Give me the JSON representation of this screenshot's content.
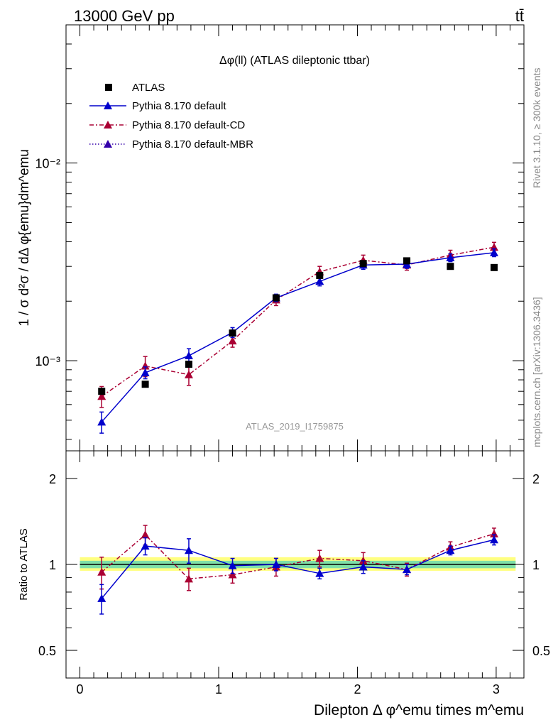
{
  "header": {
    "left": "13000 GeV pp",
    "right": "tt̄"
  },
  "side_text": {
    "right_top": "Rivet 3.1.10, ≥ 300k events",
    "right_bottom": "mcplots.cern.ch [arXiv:1306.3436]"
  },
  "watermark": "ATLAS_2019_I1759875",
  "colors": {
    "atlas": "#000000",
    "default": "#0000cc",
    "cd": "#aa0033",
    "mbr": "#3300aa",
    "band_inner": "#7fe0a8",
    "band_outer": "#ffff80"
  },
  "chart_data": [
    {
      "type": "scatter",
      "title": "Δφ(ll) (ATLAS dileptonic ttbar)",
      "ylabel": "1 / σ  d²σ / dΔ φ{emu}dm^emu",
      "xlim": [
        -0.1,
        3.2
      ],
      "ylim": [
        0.00035,
        0.05
      ],
      "yscale": "log",
      "ytick_labels": [
        "10⁻³",
        "10⁻²"
      ],
      "legend_position": "top-left",
      "x": [
        0.157,
        0.471,
        0.785,
        1.1,
        1.414,
        1.728,
        2.042,
        2.356,
        2.67,
        2.985
      ],
      "series": [
        {
          "name": "ATLAS",
          "marker": "square",
          "values": [
            0.0007,
            0.00076,
            0.00096,
            0.00138,
            0.00208,
            0.0027,
            0.0031,
            0.0032,
            0.003,
            0.00296
          ]
        },
        {
          "name": "Pythia 8.170 default",
          "marker": "triangle",
          "line": "solid",
          "values": [
            0.00049,
            0.00087,
            0.00106,
            0.00139,
            0.00208,
            0.00252,
            0.00305,
            0.00308,
            0.00332,
            0.00352
          ],
          "errors": [
            6e-05,
            6e-05,
            9e-05,
            8e-05,
            9e-05,
            0.00013,
            0.00015,
            0.00015,
            0.00015,
            0.00016
          ]
        },
        {
          "name": "Pythia 8.170 default-CD",
          "marker": "triangle",
          "line": "dashdot",
          "values": [
            0.00066,
            0.00094,
            0.00085,
            0.00126,
            0.00203,
            0.00282,
            0.00322,
            0.00305,
            0.00342,
            0.00375
          ],
          "errors": [
            8e-05,
            0.00011,
            0.0001,
            9e-05,
            0.00013,
            0.00018,
            0.0002,
            0.00018,
            0.0002,
            0.00022
          ]
        },
        {
          "name": "Pythia 8.170 default-MBR",
          "marker": "triangle",
          "line": "dotted",
          "values": []
        }
      ]
    },
    {
      "type": "scatter",
      "ylabel": "Ratio to ATLAS",
      "xlabel": "Dilepton Δ φ^emu times m^emu",
      "xlim": [
        -0.1,
        3.2
      ],
      "ylim": [
        0.4,
        2.5
      ],
      "yscale": "log",
      "yticks": [
        0.5,
        1,
        2
      ],
      "ytick_labels": [
        "0.5",
        "1",
        "2"
      ],
      "xticks": [
        0,
        1,
        2,
        3
      ],
      "xtick_labels": [
        "0",
        "1",
        "2",
        "3"
      ],
      "band_outer": [
        0.95,
        1.06
      ],
      "band_inner": [
        0.97,
        1.03
      ],
      "x": [
        0.157,
        0.471,
        0.785,
        1.1,
        1.414,
        1.728,
        2.042,
        2.356,
        2.67,
        2.985
      ],
      "series": [
        {
          "name": "Pythia 8.170 default",
          "values": [
            0.76,
            1.16,
            1.12,
            0.99,
            1.0,
            0.93,
            0.98,
            0.96,
            1.12,
            1.22
          ],
          "errors": [
            0.09,
            0.08,
            0.11,
            0.06,
            0.05,
            0.04,
            0.05,
            0.04,
            0.04,
            0.05
          ]
        },
        {
          "name": "Pythia 8.170 default-CD",
          "values": [
            0.94,
            1.27,
            0.89,
            0.92,
            0.98,
            1.05,
            1.03,
            0.96,
            1.15,
            1.28
          ],
          "errors": [
            0.12,
            0.1,
            0.08,
            0.06,
            0.07,
            0.07,
            0.07,
            0.05,
            0.05,
            0.06
          ]
        }
      ]
    }
  ]
}
